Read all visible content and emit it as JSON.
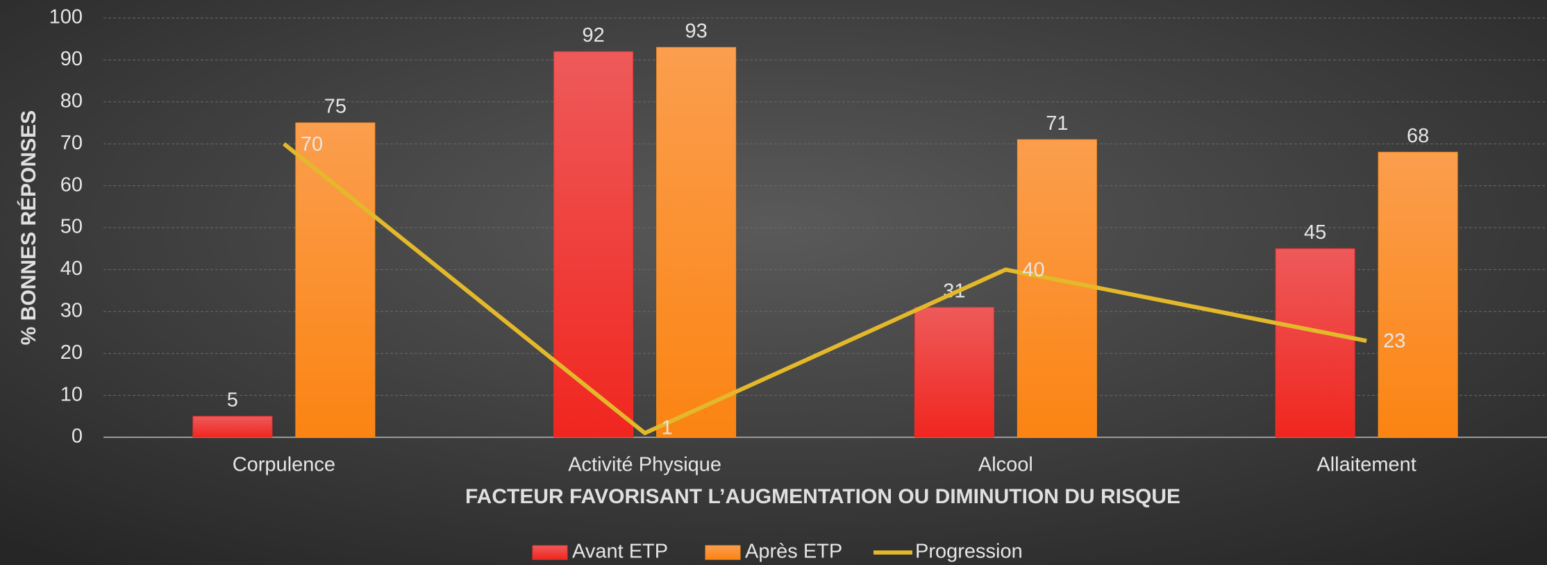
{
  "chart_data": {
    "type": "bar",
    "x_label": "FACTEUR FAVORISANT L’AUGMENTATION OU DIMINUTION  DU RISQUE",
    "y_label": "% BONNES RÉPONSES",
    "categories": [
      "Corpulence",
      "Activité Physique",
      "Alcool",
      "Allaitement"
    ],
    "series": [
      {
        "name": "Avant ETP",
        "color": "#e8302e",
        "values": [
          5,
          92,
          31,
          45
        ]
      },
      {
        "name": "Après ETP",
        "color": "#f7901e",
        "values": [
          75,
          93,
          71,
          68
        ]
      },
      {
        "name": "Progression",
        "type": "line",
        "color": "#e3b92b",
        "values": [
          70,
          1,
          40,
          23
        ]
      }
    ],
    "ylim": [
      0,
      100
    ],
    "yticks": [
      0,
      10,
      20,
      30,
      40,
      50,
      60,
      70,
      80,
      90,
      100
    ],
    "grid": true,
    "legend": "bottom"
  }
}
